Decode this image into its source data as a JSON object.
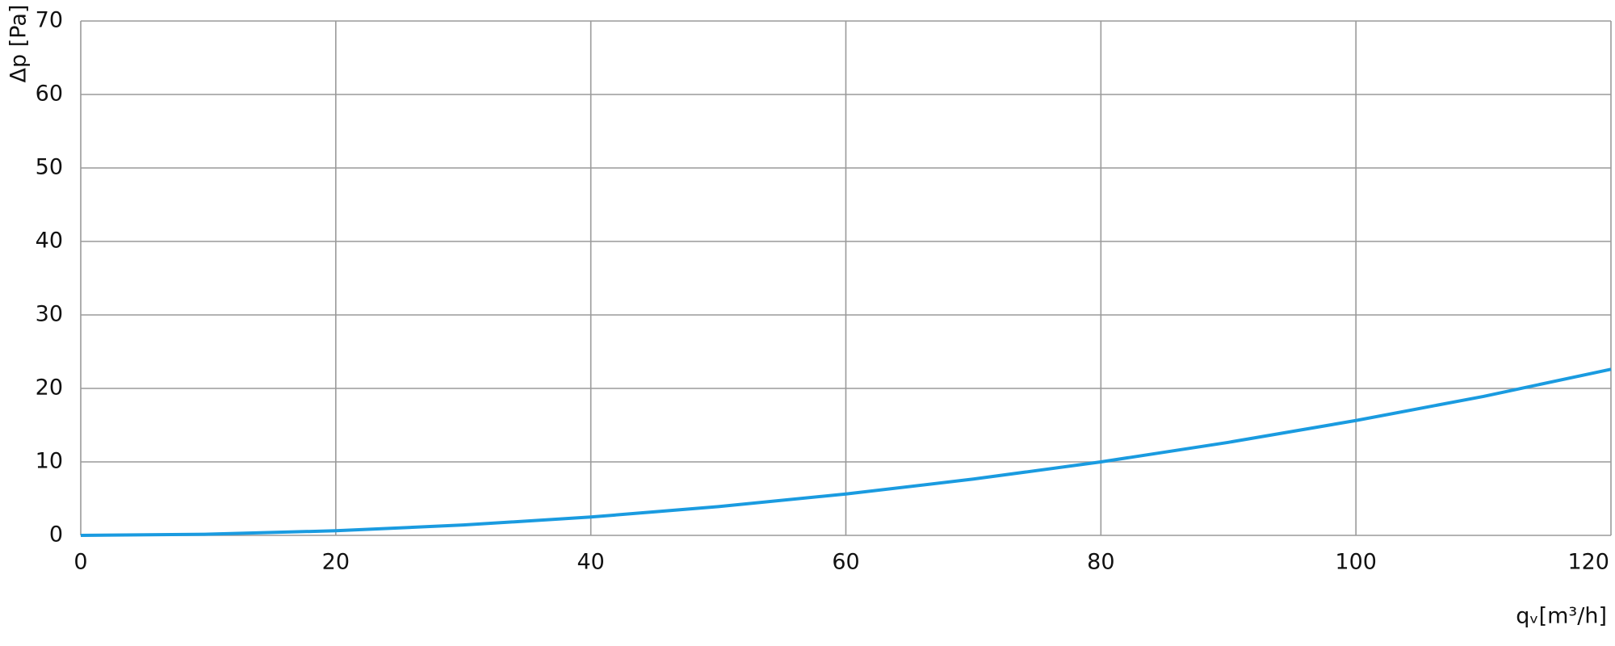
{
  "chart_data": {
    "type": "line",
    "xlabel": "qᵥ[m³/h]",
    "ylabel": "Δp [Pa]",
    "x": [
      0,
      10,
      20,
      30,
      40,
      50,
      60,
      70,
      80,
      90,
      100,
      110,
      120
    ],
    "series": [
      {
        "color": "#1a9be0",
        "values": [
          0,
          0.16,
          0.63,
          1.41,
          2.5,
          3.91,
          5.63,
          7.66,
          10,
          12.66,
          15.63,
          18.91,
          22.6
        ]
      }
    ],
    "xlim": [
      0,
      120
    ],
    "xticks": [
      0,
      20,
      40,
      60,
      80,
      100,
      120
    ],
    "ylim": [
      0,
      70
    ],
    "yticks": [
      0,
      10,
      20,
      30,
      40,
      50,
      60,
      70
    ],
    "grid": true
  }
}
